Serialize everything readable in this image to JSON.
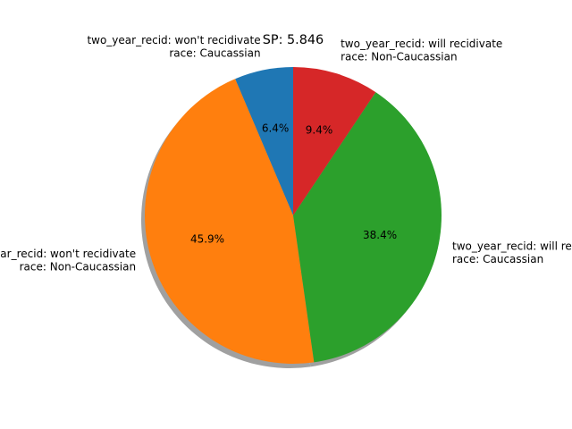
{
  "chart_data": {
    "type": "pie",
    "title": "SP: 5.846",
    "slices": [
      {
        "label_line1": "two_year_recid: won't recidivate",
        "label_line2": "race: Caucassian",
        "value": 6.4,
        "pct_label": "6.4%",
        "color": "#1f77b4"
      },
      {
        "label_line1": "two_year_recid: won't recidivate",
        "label_line2": "race: Non-Caucassian",
        "value": 45.9,
        "pct_label": "45.9%",
        "color": "#ff7f0e"
      },
      {
        "label_line1": "two_year_recid: will recidivate",
        "label_line2": "race: Caucassian",
        "value": 38.4,
        "pct_label": "38.4%",
        "color": "#2ca02c"
      },
      {
        "label_line1": "two_year_recid: will recidivate",
        "label_line2": "race: Non-Caucassian",
        "value": 9.4,
        "pct_label": "9.4%",
        "color": "#d62728"
      }
    ],
    "start_angle": 90,
    "direction": "counterclockwise",
    "shadow": true
  }
}
